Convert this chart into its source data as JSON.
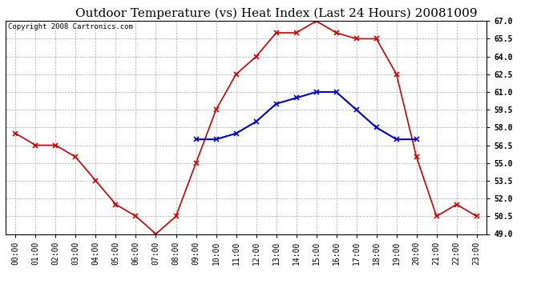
{
  "title": "Outdoor Temperature (vs) Heat Index (Last 24 Hours) 20081009",
  "copyright": "Copyright 2008 Cartronics.com",
  "hours": [
    "00:00",
    "01:00",
    "02:00",
    "03:00",
    "04:00",
    "05:00",
    "06:00",
    "07:00",
    "08:00",
    "09:00",
    "10:00",
    "11:00",
    "12:00",
    "13:00",
    "14:00",
    "15:00",
    "16:00",
    "17:00",
    "18:00",
    "19:00",
    "20:00",
    "21:00",
    "22:00",
    "23:00"
  ],
  "temp": [
    57.5,
    56.5,
    56.5,
    55.5,
    53.5,
    51.5,
    50.5,
    49.0,
    50.5,
    55.0,
    59.5,
    62.5,
    64.0,
    66.0,
    66.0,
    67.0,
    66.0,
    65.5,
    65.5,
    62.5,
    55.5,
    50.5,
    51.5,
    50.5
  ],
  "heat_index": [
    null,
    null,
    null,
    null,
    null,
    null,
    null,
    null,
    null,
    57.0,
    57.0,
    57.5,
    58.5,
    60.0,
    60.5,
    61.0,
    61.0,
    59.5,
    58.0,
    57.0,
    57.0,
    null,
    null,
    null
  ],
  "ylim": [
    49.0,
    67.0
  ],
  "yticks": [
    49.0,
    50.5,
    52.0,
    53.5,
    55.0,
    56.5,
    58.0,
    59.5,
    61.0,
    62.5,
    64.0,
    65.5,
    67.0
  ],
  "temp_color": "#cc0000",
  "heat_color": "#0000cc",
  "grid_color": "#aaaaaa",
  "bg_color": "#ffffff",
  "title_fontsize": 11,
  "tick_fontsize": 7,
  "copyright_fontsize": 6.5
}
